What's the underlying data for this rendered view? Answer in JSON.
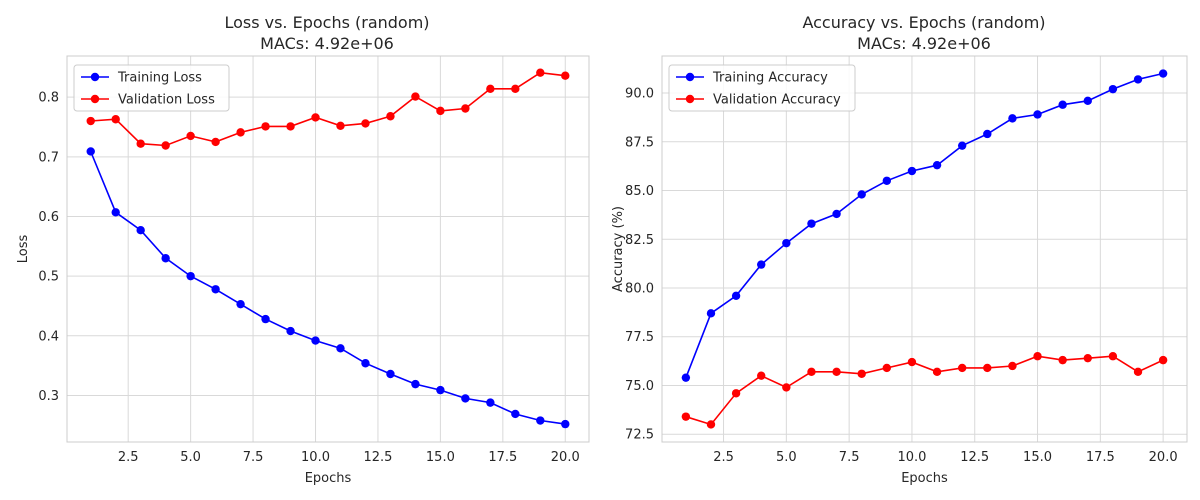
{
  "chart_data": [
    {
      "type": "line",
      "title": "Loss vs. Epochs (random)",
      "subtitle": "MACs: 4.92e+06",
      "xlabel": "Epochs",
      "ylabel": "Loss",
      "xlim": [
        0.05,
        20.95
      ],
      "ylim": [
        0.222,
        0.869
      ],
      "xticks": [
        2.5,
        5.0,
        7.5,
        10.0,
        12.5,
        15.0,
        17.5,
        20.0
      ],
      "xtick_labels": [
        "2.5",
        "5.0",
        "7.5",
        "10.0",
        "12.5",
        "15.0",
        "17.5",
        "20.0"
      ],
      "yticks": [
        0.3,
        0.4,
        0.5,
        0.6,
        0.7,
        0.8
      ],
      "ytick_labels": [
        "0.3",
        "0.4",
        "0.5",
        "0.6",
        "0.7",
        "0.8"
      ],
      "grid": true,
      "legend_position": "top-left",
      "x": [
        1,
        2,
        3,
        4,
        5,
        6,
        7,
        8,
        9,
        10,
        11,
        12,
        13,
        14,
        15,
        16,
        17,
        18,
        19,
        20
      ],
      "series": [
        {
          "name": "Training Loss",
          "color": "#0000ff",
          "values": [
            0.709,
            0.607,
            0.577,
            0.53,
            0.5,
            0.478,
            0.453,
            0.428,
            0.408,
            0.392,
            0.379,
            0.354,
            0.336,
            0.319,
            0.309,
            0.295,
            0.288,
            0.269,
            0.258,
            0.252
          ]
        },
        {
          "name": "Validation Loss",
          "color": "#ff0000",
          "values": [
            0.76,
            0.763,
            0.722,
            0.719,
            0.735,
            0.725,
            0.741,
            0.751,
            0.751,
            0.766,
            0.752,
            0.756,
            0.768,
            0.801,
            0.777,
            0.781,
            0.814,
            0.814,
            0.841,
            0.836
          ]
        }
      ]
    },
    {
      "type": "line",
      "title": "Accuracy vs. Epochs (random)",
      "subtitle": "MACs: 4.92e+06",
      "xlabel": "Epochs",
      "ylabel": "Accuracy (%)",
      "xlim": [
        0.05,
        20.95
      ],
      "ylim": [
        72.1,
        91.9
      ],
      "xticks": [
        2.5,
        5.0,
        7.5,
        10.0,
        12.5,
        15.0,
        17.5,
        20.0
      ],
      "xtick_labels": [
        "2.5",
        "5.0",
        "7.5",
        "10.0",
        "12.5",
        "15.0",
        "17.5",
        "20.0"
      ],
      "yticks": [
        72.5,
        75.0,
        77.5,
        80.0,
        82.5,
        85.0,
        87.5,
        90.0
      ],
      "ytick_labels": [
        "72.5",
        "75.0",
        "77.5",
        "80.0",
        "82.5",
        "85.0",
        "87.5",
        "90.0"
      ],
      "grid": true,
      "legend_position": "top-left",
      "x": [
        1,
        2,
        3,
        4,
        5,
        6,
        7,
        8,
        9,
        10,
        11,
        12,
        13,
        14,
        15,
        16,
        17,
        18,
        19,
        20
      ],
      "series": [
        {
          "name": "Training Accuracy",
          "color": "#0000ff",
          "values": [
            75.4,
            78.7,
            79.6,
            81.2,
            82.3,
            83.3,
            83.8,
            84.8,
            85.5,
            86.0,
            86.3,
            87.3,
            87.9,
            88.7,
            88.9,
            89.4,
            89.6,
            90.2,
            90.7,
            91.0
          ]
        },
        {
          "name": "Validation Accuracy",
          "color": "#ff0000",
          "values": [
            73.4,
            73.0,
            74.6,
            75.5,
            74.9,
            75.7,
            75.7,
            75.6,
            75.9,
            76.2,
            75.7,
            75.9,
            75.9,
            76.0,
            76.5,
            76.3,
            76.4,
            76.5,
            75.7,
            76.3
          ]
        }
      ]
    }
  ]
}
